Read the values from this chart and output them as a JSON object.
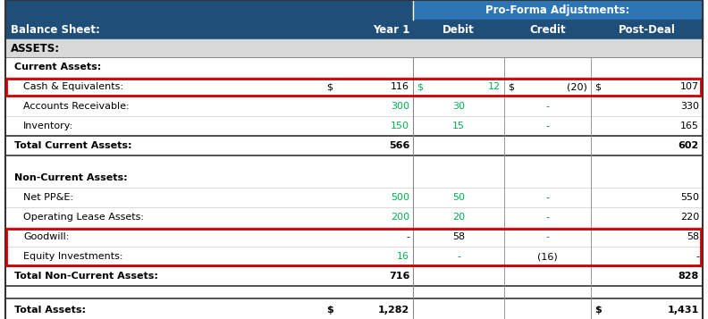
{
  "title": "Pro-Forma Adjustments:",
  "dark_blue": "#1F4E79",
  "medium_blue": "#2E75B6",
  "red_box_color": "#CC0000",
  "green_color": "#00B050",
  "blue_dash_color": "#0070C0",
  "black": "#000000",
  "white": "#FFFFFF",
  "light_gray": "#D9D9D9",
  "bg_white": "#FFFFFF",
  "rows": [
    {
      "label": "Current Assets:",
      "type": "section_header",
      "indent": 1,
      "values": [
        "",
        "",
        "",
        ""
      ]
    },
    {
      "label": "Cash & Equivalents:",
      "type": "cash_row",
      "indent": 2,
      "values": [
        "116",
        "12",
        "(20)",
        "107"
      ],
      "val_colors": [
        "#000000",
        "#00B050",
        "#000000",
        "#000000"
      ],
      "year1_prefix": "$",
      "debit_prefix": "$",
      "credit_prefix": "$",
      "post_prefix": "$"
    },
    {
      "label": "Accounts Receivable:",
      "type": "data",
      "indent": 2,
      "values": [
        "300",
        "30",
        "-",
        "330"
      ],
      "val_colors": [
        "#00B050",
        "#00B050",
        "#0070C0",
        "#000000"
      ]
    },
    {
      "label": "Inventory:",
      "type": "data",
      "indent": 2,
      "values": [
        "150",
        "15",
        "-",
        "165"
      ],
      "val_colors": [
        "#00B050",
        "#00B050",
        "#0070C0",
        "#000000"
      ]
    },
    {
      "label": "Total Current Assets:",
      "type": "total",
      "indent": 1,
      "values": [
        "566",
        "",
        "",
        "602"
      ]
    },
    {
      "label": "",
      "type": "spacer"
    },
    {
      "label": "Non-Current Assets:",
      "type": "section_header",
      "indent": 1,
      "values": [
        "",
        "",
        "",
        ""
      ]
    },
    {
      "label": "Net PP&E:",
      "type": "data",
      "indent": 2,
      "values": [
        "500",
        "50",
        "-",
        "550"
      ],
      "val_colors": [
        "#00B050",
        "#00B050",
        "#0070C0",
        "#000000"
      ]
    },
    {
      "label": "Operating Lease Assets:",
      "type": "data",
      "indent": 2,
      "values": [
        "200",
        "20",
        "-",
        "220"
      ],
      "val_colors": [
        "#00B050",
        "#00B050",
        "#0070C0",
        "#000000"
      ]
    },
    {
      "label": "Goodwill:",
      "type": "red2_start",
      "indent": 2,
      "values": [
        "-",
        "58",
        "-",
        "58"
      ],
      "val_colors": [
        "#000000",
        "#000000",
        "#0070C0",
        "#000000"
      ]
    },
    {
      "label": "Equity Investments:",
      "type": "red2_end",
      "indent": 2,
      "values": [
        "16",
        "-",
        "(16)",
        "-"
      ],
      "val_colors": [
        "#00B050",
        "#0070C0",
        "#000000",
        "#000000"
      ]
    },
    {
      "label": "Total Non-Current Assets:",
      "type": "total",
      "indent": 1,
      "values": [
        "716",
        "",
        "",
        "828"
      ]
    },
    {
      "label": "",
      "type": "spacer"
    },
    {
      "label": "Total Assets:",
      "type": "grand_total",
      "indent": 1,
      "values": [
        "1,282",
        "",
        "",
        "1,431"
      ],
      "year1_prefix": "$",
      "post_prefix": "$"
    }
  ]
}
